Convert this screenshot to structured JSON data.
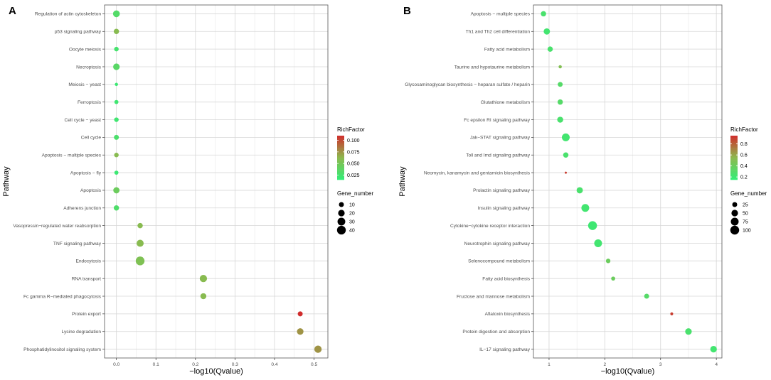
{
  "colors": {
    "low": "#33ee77",
    "mid": "#8db84e",
    "high": "#d02c2c",
    "panel_bg": "#ffffff",
    "grid": "#d6d6d6",
    "border": "#555555"
  },
  "chart_data": [
    {
      "type": "scatter",
      "panel_label": "A",
      "xlabel": "−log10(Qvalue)",
      "ylabel": "Pathway",
      "xlim": [
        -0.03,
        0.535
      ],
      "xticks": [
        0.0,
        0.1,
        0.2,
        0.3,
        0.4,
        0.5
      ],
      "xtick_labels": [
        "0.0",
        "0.1",
        "0.2",
        "0.3",
        "0.4",
        "0.5"
      ],
      "color_scale": {
        "min": 0.015,
        "max": 0.11
      },
      "size_scale": {
        "min": 2,
        "max": 45
      },
      "color_legend": {
        "title": "RichFactor",
        "ticks": [
          0.1,
          0.075,
          0.05,
          0.025
        ],
        "labels": [
          "0.100",
          "0.075",
          "0.050",
          "0.025"
        ]
      },
      "size_legend": {
        "title": "Gene_number",
        "values": [
          10,
          20,
          30,
          40
        ],
        "labels": [
          "10",
          "20",
          "30",
          "40"
        ]
      },
      "categories": [
        "Regulation of actin cytoskeleton",
        "p53 signaling pathway",
        "Oocyte meiosis",
        "Necroptosis",
        "Meiosis − yeast",
        "Ferroptosis",
        "Cell cycle − yeast",
        "Cell cycle",
        "Apoptosis − multiple species",
        "Apoptosis − fly",
        "Apoptosis",
        "Adherens junction",
        "Vasopressin−regulated water reabsorption",
        "TNF signaling pathway",
        "Endocytosis",
        "RNA transport",
        "Fc gamma R−mediated phagocytosis",
        "Protein export",
        "Lysine degradation",
        "Phosphatidylinositol signaling system"
      ],
      "x": [
        0.0,
        0.0,
        0.0,
        0.0,
        0.0,
        0.0,
        0.0,
        0.0,
        0.0,
        0.0,
        0.0,
        0.0,
        0.06,
        0.06,
        0.06,
        0.22,
        0.22,
        0.465,
        0.465,
        0.51
      ],
      "rich_factor": [
        0.032,
        0.06,
        0.025,
        0.035,
        0.02,
        0.022,
        0.022,
        0.028,
        0.06,
        0.02,
        0.045,
        0.03,
        0.06,
        0.06,
        0.055,
        0.06,
        0.06,
        0.11,
        0.075,
        0.075
      ],
      "gene_number": [
        22,
        12,
        8,
        20,
        3,
        6,
        8,
        10,
        8,
        6,
        18,
        12,
        12,
        24,
        40,
        26,
        16,
        10,
        20,
        26
      ]
    },
    {
      "type": "scatter",
      "panel_label": "B",
      "xlabel": "−log10(Qvalue)",
      "ylabel": "Pathway",
      "xlim": [
        0.72,
        4.1
      ],
      "xticks": [
        1,
        2,
        3,
        4
      ],
      "xtick_labels": [
        "1",
        "2",
        "3",
        "4"
      ],
      "color_scale": {
        "min": 0.15,
        "max": 0.95
      },
      "size_scale": {
        "min": 2,
        "max": 110
      },
      "color_legend": {
        "title": "RichFactor",
        "ticks": [
          0.8,
          0.6,
          0.4,
          0.2
        ],
        "labels": [
          "0.8",
          "0.6",
          "0.4",
          "0.2"
        ]
      },
      "size_legend": {
        "title": "Gene_number",
        "values": [
          25,
          50,
          75,
          100
        ],
        "labels": [
          "25",
          "50",
          "75",
          "100"
        ]
      },
      "categories": [
        "Apoptosis − multiple species",
        "Th1 and Th2 cell differentiation",
        "Fatty acid metabolism",
        "Taurine and hypotaurine metabolism",
        "Glycosaminoglycan biosynthesis − heparan sulfate / heparin",
        "Glutathione metabolism",
        "Fc epsilon RI signaling pathway",
        "Jak−STAT signaling pathway",
        "Toll and Imd signaling pathway",
        "Neomycin, kanamycin and gentamicin biosynthesis",
        "Prolactin signaling pathway",
        "Insulin signaling pathway",
        "Cytokine−cytokine receptor interaction",
        "Neurotrophin signaling pathway",
        "Selenocompound metabolism",
        "Fatty acid biosynthesis",
        "Fructose and mannose metabolism",
        "Aflatoxin biosynthesis",
        "Protein digestion and absorption",
        "IL−17 signaling pathway"
      ],
      "x": [
        0.9,
        0.96,
        1.02,
        1.2,
        1.2,
        1.2,
        1.2,
        1.3,
        1.3,
        1.3,
        1.55,
        1.65,
        1.78,
        1.88,
        2.06,
        2.15,
        2.75,
        3.2,
        3.5,
        3.95
      ],
      "rich_factor": [
        0.25,
        0.22,
        0.25,
        0.5,
        0.3,
        0.3,
        0.25,
        0.22,
        0.25,
        0.9,
        0.25,
        0.22,
        0.2,
        0.22,
        0.4,
        0.4,
        0.3,
        0.9,
        0.25,
        0.22
      ],
      "gene_number": [
        30,
        45,
        30,
        8,
        25,
        30,
        40,
        75,
        30,
        2,
        45,
        75,
        100,
        75,
        20,
        15,
        25,
        6,
        50,
        50
      ]
    }
  ]
}
